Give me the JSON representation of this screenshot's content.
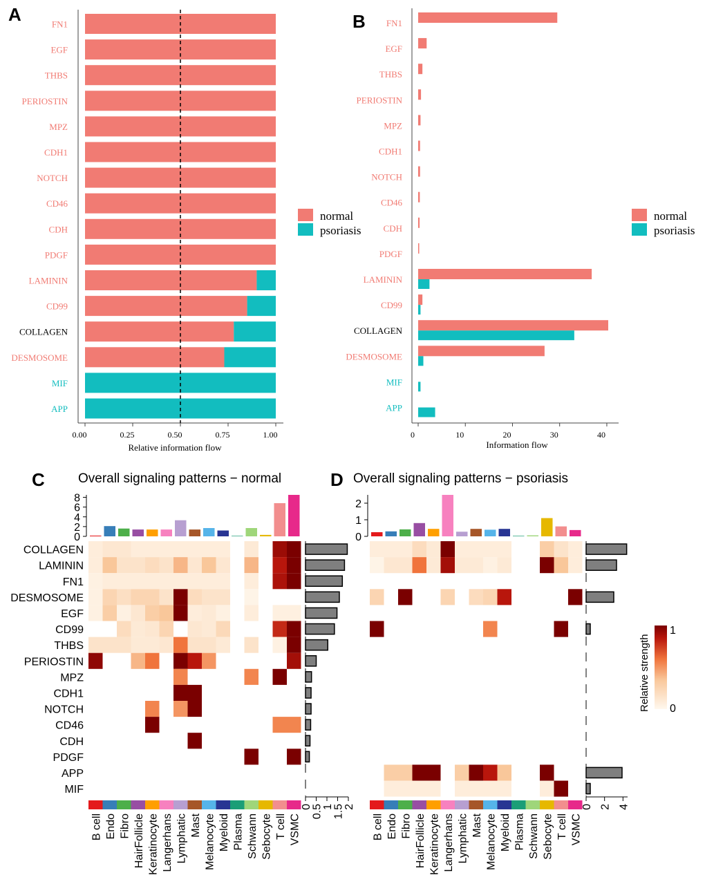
{
  "panels": {
    "A": "A",
    "B": "B",
    "C": "C",
    "D": "D"
  },
  "colors": {
    "normal": "#F17B73",
    "psoriasis": "#12BDBF",
    "grey_bar": "#7f7f7f",
    "heat_low": "#FFF5E8",
    "heat_high": "#7A0000"
  },
  "legend_ab": {
    "normal": "normal",
    "psoriasis": "psoriasis"
  },
  "chart_data": [
    {
      "panel": "A",
      "type": "bar",
      "orientation": "horizontal",
      "stacked": true,
      "categories": [
        "FN1",
        "EGF",
        "THBS",
        "PERIOSTIN",
        "MPZ",
        "CDH1",
        "NOTCH",
        "CD46",
        "CDH",
        "PDGF",
        "LAMININ",
        "CD99",
        "COLLAGEN",
        "DESMOSOME",
        "MIF",
        "APP"
      ],
      "label_colors": [
        "normal",
        "normal",
        "normal",
        "normal",
        "normal",
        "normal",
        "normal",
        "normal",
        "normal",
        "normal",
        "normal",
        "normal",
        "neutral",
        "normal",
        "psoriasis",
        "psoriasis"
      ],
      "series": [
        {
          "name": "normal",
          "values": [
            1,
            1,
            1,
            1,
            1,
            1,
            1,
            1,
            1,
            1,
            0.9,
            0.85,
            0.78,
            0.73,
            0,
            0
          ]
        },
        {
          "name": "psoriasis",
          "values": [
            0,
            0,
            0,
            0,
            0,
            0,
            0,
            0,
            0,
            0,
            0.1,
            0.15,
            0.22,
            0.27,
            1,
            1
          ]
        }
      ],
      "xlabel": "Relative information flow",
      "xticks": [
        "0.00",
        "0.25",
        "0.50",
        "0.75",
        "1.00"
      ],
      "xlim": [
        0,
        1
      ],
      "reference_line": 0.5
    },
    {
      "panel": "B",
      "type": "bar",
      "orientation": "horizontal",
      "stacked": false,
      "categories": [
        "FN1",
        "EGF",
        "THBS",
        "PERIOSTIN",
        "MPZ",
        "CDH1",
        "NOTCH",
        "CD46",
        "CDH",
        "PDGF",
        "LAMININ",
        "CD99",
        "COLLAGEN",
        "DESMOSOME",
        "MIF",
        "APP"
      ],
      "label_colors": [
        "normal",
        "normal",
        "normal",
        "normal",
        "normal",
        "normal",
        "normal",
        "normal",
        "normal",
        "normal",
        "normal",
        "normal",
        "neutral",
        "normal",
        "psoriasis",
        "psoriasis"
      ],
      "series": [
        {
          "name": "normal",
          "values": [
            29.5,
            1.8,
            0.9,
            0.6,
            0.5,
            0.4,
            0.4,
            0.35,
            0.3,
            0.2,
            36.8,
            0.9,
            40.3,
            26.8,
            0,
            0
          ]
        },
        {
          "name": "psoriasis",
          "values": [
            0,
            0,
            0,
            0,
            0,
            0,
            0,
            0,
            0,
            0,
            2.4,
            0.5,
            33.1,
            1.1,
            0.5,
            3.6
          ]
        }
      ],
      "xlabel": "Information flow",
      "xticks": [
        "0",
        "10",
        "20",
        "30",
        "40"
      ],
      "xlim": [
        0,
        42.5
      ]
    },
    {
      "panel": "C",
      "type": "heatmap",
      "title": "Overall signaling patterns − normal",
      "rows": [
        "COLLAGEN",
        "LAMININ",
        "FN1",
        "DESMOSOME",
        "EGF",
        "CD99",
        "THBS",
        "PERIOSTIN",
        "MPZ",
        "CDH1",
        "NOTCH",
        "CD46",
        "CDH",
        "PDGF",
        "APP",
        "MIF"
      ],
      "cols": [
        "B cell",
        "Endo",
        "Fibro",
        "HairFollicle",
        "Keratinocyte",
        "Langerhans",
        "Lymphatic",
        "Mast",
        "Melanocyte",
        "Myeloid",
        "Plasma",
        "Schwann",
        "Sebocyte",
        "T cell",
        "VSMC"
      ],
      "col_colors": [
        "#E41A1C",
        "#377EB8",
        "#4DAF4A",
        "#984EA3",
        "#FF9F00",
        "#F781BF",
        "#B79FD1",
        "#A65628",
        "#56B4E9",
        "#283593",
        "#1B9E77",
        "#9FD67A",
        "#E6B800",
        "#F28E8E",
        "#E7298A"
      ],
      "matrix": [
        [
          0.08,
          0.12,
          0.12,
          0.08,
          0.08,
          0.08,
          0.08,
          0.08,
          0.08,
          0.08,
          null,
          0.1,
          null,
          0.92,
          1
        ],
        [
          0.08,
          0.35,
          0.15,
          0.15,
          0.2,
          0.15,
          0.4,
          0.12,
          0.35,
          0.12,
          null,
          0.4,
          null,
          0.85,
          1
        ],
        [
          0.05,
          0.08,
          0.08,
          0.08,
          0.08,
          0.08,
          0.08,
          0.08,
          0.08,
          0.08,
          null,
          0.08,
          null,
          0.88,
          1
        ],
        [
          0.05,
          0.25,
          0.18,
          0.25,
          0.25,
          0.15,
          1,
          0.2,
          0.15,
          0.15,
          null,
          0.03,
          null,
          null,
          null
        ],
        [
          0.05,
          0.3,
          0.05,
          0.12,
          0.3,
          0.35,
          1,
          0.08,
          0.1,
          0.05,
          null,
          0.08,
          null,
          0.06,
          0.06
        ],
        [
          null,
          null,
          0.2,
          0.1,
          0.12,
          0.25,
          null,
          0.12,
          0.1,
          0.22,
          null,
          null,
          null,
          0.8,
          1
        ],
        [
          0.15,
          0.15,
          0.15,
          0.1,
          0.1,
          0.12,
          0.6,
          0.15,
          0.15,
          0.1,
          null,
          0.15,
          null,
          0.05,
          1
        ],
        [
          0.95,
          null,
          null,
          0.4,
          0.6,
          null,
          1,
          0.85,
          0.5,
          null,
          null,
          null,
          null,
          null,
          0.9
        ],
        [
          null,
          null,
          null,
          null,
          null,
          null,
          0.55,
          null,
          null,
          null,
          null,
          0.55,
          null,
          1,
          null
        ],
        [
          null,
          null,
          null,
          null,
          null,
          null,
          1,
          1,
          null,
          null,
          null,
          null,
          null,
          null,
          null
        ],
        [
          null,
          null,
          null,
          null,
          0.55,
          null,
          0.5,
          1,
          null,
          null,
          null,
          null,
          null,
          null,
          null
        ],
        [
          null,
          null,
          null,
          null,
          1,
          null,
          null,
          null,
          null,
          null,
          null,
          null,
          null,
          0.55,
          0.55
        ],
        [
          null,
          null,
          null,
          null,
          null,
          null,
          null,
          1,
          null,
          null,
          null,
          null,
          null,
          null,
          null
        ],
        [
          null,
          null,
          null,
          null,
          null,
          null,
          null,
          null,
          null,
          null,
          null,
          1,
          null,
          null,
          1
        ],
        [
          null,
          null,
          null,
          null,
          null,
          null,
          null,
          null,
          null,
          null,
          null,
          null,
          null,
          null,
          null
        ],
        [
          null,
          null,
          null,
          null,
          null,
          null,
          null,
          null,
          null,
          null,
          null,
          null,
          null,
          null,
          null
        ]
      ],
      "top_bars": [
        0.15,
        2.1,
        1.6,
        1.4,
        1.4,
        1.4,
        3.3,
        1.4,
        1.7,
        1.2,
        0.1,
        1.7,
        0.3,
        6.8,
        8.5
      ],
      "top_ticks": [
        "0",
        "2",
        "4",
        "6",
        "8"
      ],
      "top_max": 8.5,
      "right_bars": [
        1.95,
        1.82,
        1.72,
        1.58,
        1.47,
        1.35,
        1.04,
        0.5,
        0.28,
        0.26,
        0.26,
        0.24,
        0.21,
        0.18,
        0,
        0
      ],
      "right_ticks": [
        "0",
        "0.5",
        "1",
        "1.5",
        "2"
      ],
      "right_max": 2
    },
    {
      "panel": "D",
      "type": "heatmap",
      "title": "Overall signaling patterns − psoriasis",
      "rows": [
        "COLLAGEN",
        "LAMININ",
        "FN1",
        "DESMOSOME",
        "EGF",
        "CD99",
        "THBS",
        "PERIOSTIN",
        "MPZ",
        "CDH1",
        "NOTCH",
        "CD46",
        "CDH",
        "PDGF",
        "APP",
        "MIF"
      ],
      "cols": [
        "B cell",
        "Endo",
        "Fibro",
        "HairFollicle",
        "Keratinocyte",
        "Langerhans",
        "Lymphatic",
        "Mast",
        "Melanocyte",
        "Myeloid",
        "Plasma",
        "Schwann",
        "Sebocyte",
        "T cell",
        "VSMC"
      ],
      "col_colors": [
        "#E41A1C",
        "#377EB8",
        "#4DAF4A",
        "#984EA3",
        "#FF9F00",
        "#F781BF",
        "#B79FD1",
        "#A65628",
        "#56B4E9",
        "#283593",
        "#1B9E77",
        "#9FD67A",
        "#E6B800",
        "#F28E8E",
        "#E7298A"
      ],
      "matrix": [
        [
          0.08,
          0.08,
          0.08,
          0.2,
          0.1,
          1,
          0.08,
          0.08,
          0.08,
          0.08,
          null,
          null,
          0.3,
          0.15,
          0.08
        ],
        [
          0.03,
          0.12,
          0.12,
          0.6,
          0.1,
          0.9,
          0.1,
          0.1,
          0.05,
          0.1,
          null,
          null,
          1,
          0.35,
          0.08
        ],
        [
          null,
          null,
          null,
          null,
          null,
          null,
          null,
          null,
          null,
          null,
          null,
          null,
          null,
          null,
          null
        ],
        [
          0.25,
          null,
          1,
          null,
          null,
          0.25,
          null,
          0.2,
          0.25,
          0.85,
          null,
          null,
          null,
          null,
          1
        ],
        [
          null,
          null,
          null,
          null,
          null,
          null,
          null,
          null,
          null,
          null,
          null,
          null,
          null,
          null,
          null
        ],
        [
          1,
          null,
          null,
          null,
          null,
          null,
          null,
          null,
          0.55,
          null,
          null,
          null,
          null,
          1,
          null
        ],
        [
          null,
          null,
          null,
          null,
          null,
          null,
          null,
          null,
          null,
          null,
          null,
          null,
          null,
          null,
          null
        ],
        [
          null,
          null,
          null,
          null,
          null,
          null,
          null,
          null,
          null,
          null,
          null,
          null,
          null,
          null,
          null
        ],
        [
          null,
          null,
          null,
          null,
          null,
          null,
          null,
          null,
          null,
          null,
          null,
          null,
          null,
          null,
          null
        ],
        [
          null,
          null,
          null,
          null,
          null,
          null,
          null,
          null,
          null,
          null,
          null,
          null,
          null,
          null,
          null
        ],
        [
          null,
          null,
          null,
          null,
          null,
          null,
          null,
          null,
          null,
          null,
          null,
          null,
          null,
          null,
          null
        ],
        [
          null,
          null,
          null,
          null,
          null,
          null,
          null,
          null,
          null,
          null,
          null,
          null,
          null,
          null,
          null
        ],
        [
          null,
          null,
          null,
          null,
          null,
          null,
          null,
          null,
          null,
          null,
          null,
          null,
          null,
          null,
          null
        ],
        [
          null,
          null,
          null,
          null,
          null,
          null,
          null,
          null,
          null,
          null,
          null,
          null,
          null,
          null,
          null
        ],
        [
          null,
          0.3,
          0.3,
          1,
          1,
          null,
          0.3,
          1,
          0.85,
          0.35,
          null,
          null,
          1,
          null,
          null
        ],
        [
          null,
          0.08,
          0.08,
          0.08,
          0.08,
          null,
          0.08,
          0.08,
          0.08,
          0.08,
          null,
          null,
          0.08,
          1,
          null
        ]
      ],
      "top_bars": [
        0.25,
        0.3,
        0.42,
        0.8,
        0.45,
        2.5,
        0.28,
        0.45,
        0.4,
        0.45,
        0.03,
        0.06,
        1.1,
        0.6,
        0.38
      ],
      "top_ticks": [
        "0",
        "1",
        "2"
      ],
      "top_max": 2.5,
      "right_bars": [
        4.4,
        3.3,
        0,
        3.0,
        0,
        0.45,
        0,
        0,
        0,
        0,
        0,
        0,
        0,
        0,
        3.9,
        0.45
      ],
      "right_ticks": [
        "0",
        "2",
        "4"
      ],
      "right_max": 4.5
    }
  ],
  "colorbar": {
    "label": "Relative strength",
    "min_label": "0",
    "max_label": "1"
  }
}
